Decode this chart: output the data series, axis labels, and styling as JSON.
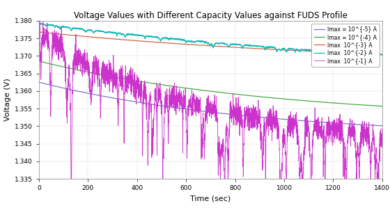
{
  "title": "Voltage Values with Different Capacity Values against FUDS Profile",
  "xlabel": "Time (sec)",
  "ylabel": "Voltage (V)",
  "xlim": [
    0,
    1400
  ],
  "ylim": [
    1.335,
    1.38
  ],
  "yticks": [
    1.335,
    1.34,
    1.345,
    1.35,
    1.355,
    1.36,
    1.365,
    1.37,
    1.375,
    1.38
  ],
  "xticks": [
    0,
    200,
    400,
    600,
    800,
    1000,
    1200,
    1400
  ],
  "background_color": "#ffffff",
  "legend_loc": "upper right",
  "lines": [
    {
      "label": "Imax = 10^{-5} A",
      "color": "#7777cc",
      "lw": 0.9,
      "v_start": 1.3625,
      "v_end": 1.3468,
      "tau": 900,
      "noise_amp": 0.0
    },
    {
      "label": "Imax = 10^{-4} A",
      "color": "#44aa44",
      "lw": 0.9,
      "v_start": 1.3685,
      "v_end": 1.3515,
      "tau": 1000,
      "noise_amp": 0.0
    },
    {
      "label": "Imax  10^{-3} A",
      "color": "#cc6644",
      "lw": 0.9,
      "v_start": 1.3768,
      "v_end": 1.3668,
      "tau": 1400,
      "noise_amp": 0.0
    },
    {
      "label": "Imax  10^{-2} A",
      "color": "#11bbbb",
      "lw": 0.9,
      "v_start": 1.3792,
      "v_end": 1.3628,
      "tau": 1800,
      "noise_amp": 0.00025
    },
    {
      "label": "Imax  10^{-1} A",
      "color": "#cc33cc",
      "lw": 0.6,
      "v_start": 1.3765,
      "v_end": 1.344,
      "tau": 650,
      "noise_amp": 0.006
    }
  ]
}
